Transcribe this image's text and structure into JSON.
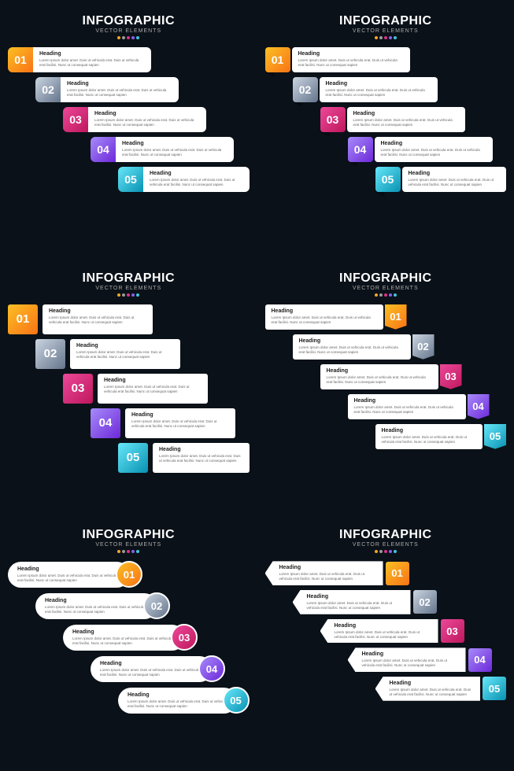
{
  "header": {
    "title": "INFOGRAPHIC",
    "subtitle": "VECTOR ELEMENTS"
  },
  "dot_colors": [
    "#f5a623",
    "#9b9b9b",
    "#d63384",
    "#8b5cf6",
    "#3ec6d6"
  ],
  "body": "Lorem Ipsum dolor amet. Duis ut vehicula erat. Duis ut vehicula erat facilisi. Nunc ut consequat sapien",
  "heading": "Heading",
  "steps": [
    {
      "num": "01",
      "heading": "Heading",
      "grad": [
        "#fbbf24",
        "#f97316"
      ]
    },
    {
      "num": "02",
      "heading": "Heading",
      "grad": [
        "#cbd5e1",
        "#64748b"
      ]
    },
    {
      "num": "03",
      "heading": "Heading",
      "grad": [
        "#ec4899",
        "#be185d"
      ]
    },
    {
      "num": "04",
      "heading": "Heading",
      "grad": [
        "#a78bfa",
        "#6d28d9"
      ]
    },
    {
      "num": "05",
      "heading": "Heading",
      "grad": [
        "#67e8f9",
        "#0891b2"
      ]
    }
  ],
  "panel_styles": [
    "sA",
    "sB",
    "sC",
    "sD",
    "sE",
    "sF"
  ],
  "tab_side": [
    "left",
    "left",
    "left",
    "right",
    "right",
    "right"
  ]
}
